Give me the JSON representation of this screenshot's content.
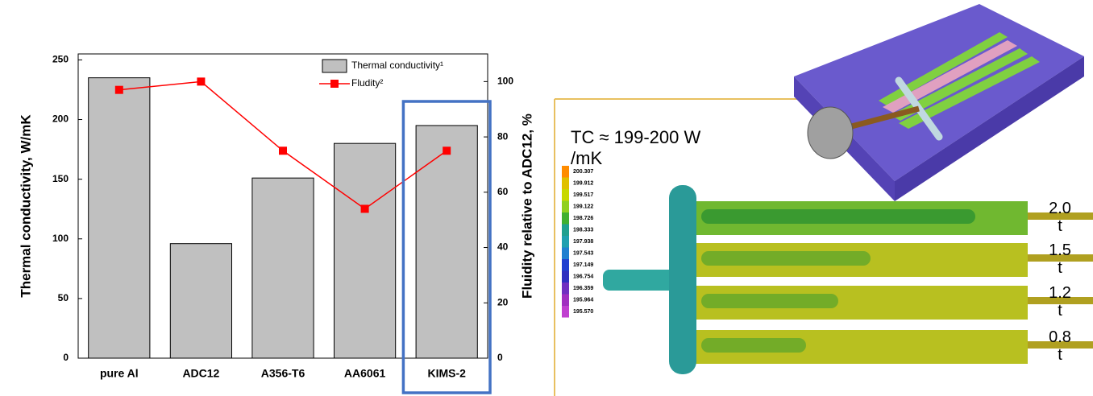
{
  "chart_data": {
    "type": "bar",
    "categories": [
      "pure Al",
      "ADC12",
      "A356-T6",
      "AA6061",
      "KIMS-2"
    ],
    "y_label": "Thermal conductivity, W/mK",
    "y2_label": "Fluidity relative to ADC12, %",
    "series": [
      {
        "name": "Thermal conductivity¹",
        "type": "bar",
        "color": "#c0c0c0",
        "values": [
          235,
          96,
          151,
          180,
          195
        ]
      },
      {
        "name": "Fludity²",
        "type": "line",
        "axis": "y2",
        "color": "#ff0000",
        "values": [
          97,
          100,
          75,
          54,
          75
        ]
      }
    ],
    "ylim": [
      0,
      255
    ],
    "yticks": [
      0,
      50,
      100,
      150,
      200,
      250
    ],
    "y2lim": [
      0,
      110
    ],
    "y2ticks": [
      0,
      20,
      40,
      60,
      80,
      100
    ],
    "legend": "upper right",
    "highlight_color": "#4472c4"
  },
  "simulation": {
    "note": "TC ≈ 199-200 W /mK",
    "scale_labels": [
      "200.307",
      "199.912",
      "199.517",
      "199.122",
      "198.726",
      "198.333",
      "197.938",
      "197.543",
      "197.149",
      "196.754",
      "196.359",
      "195.964",
      "195.570"
    ],
    "thickness_labels": [
      "2.0 t",
      "1.5 t",
      "1.2 t",
      "0.8 t"
    ]
  }
}
